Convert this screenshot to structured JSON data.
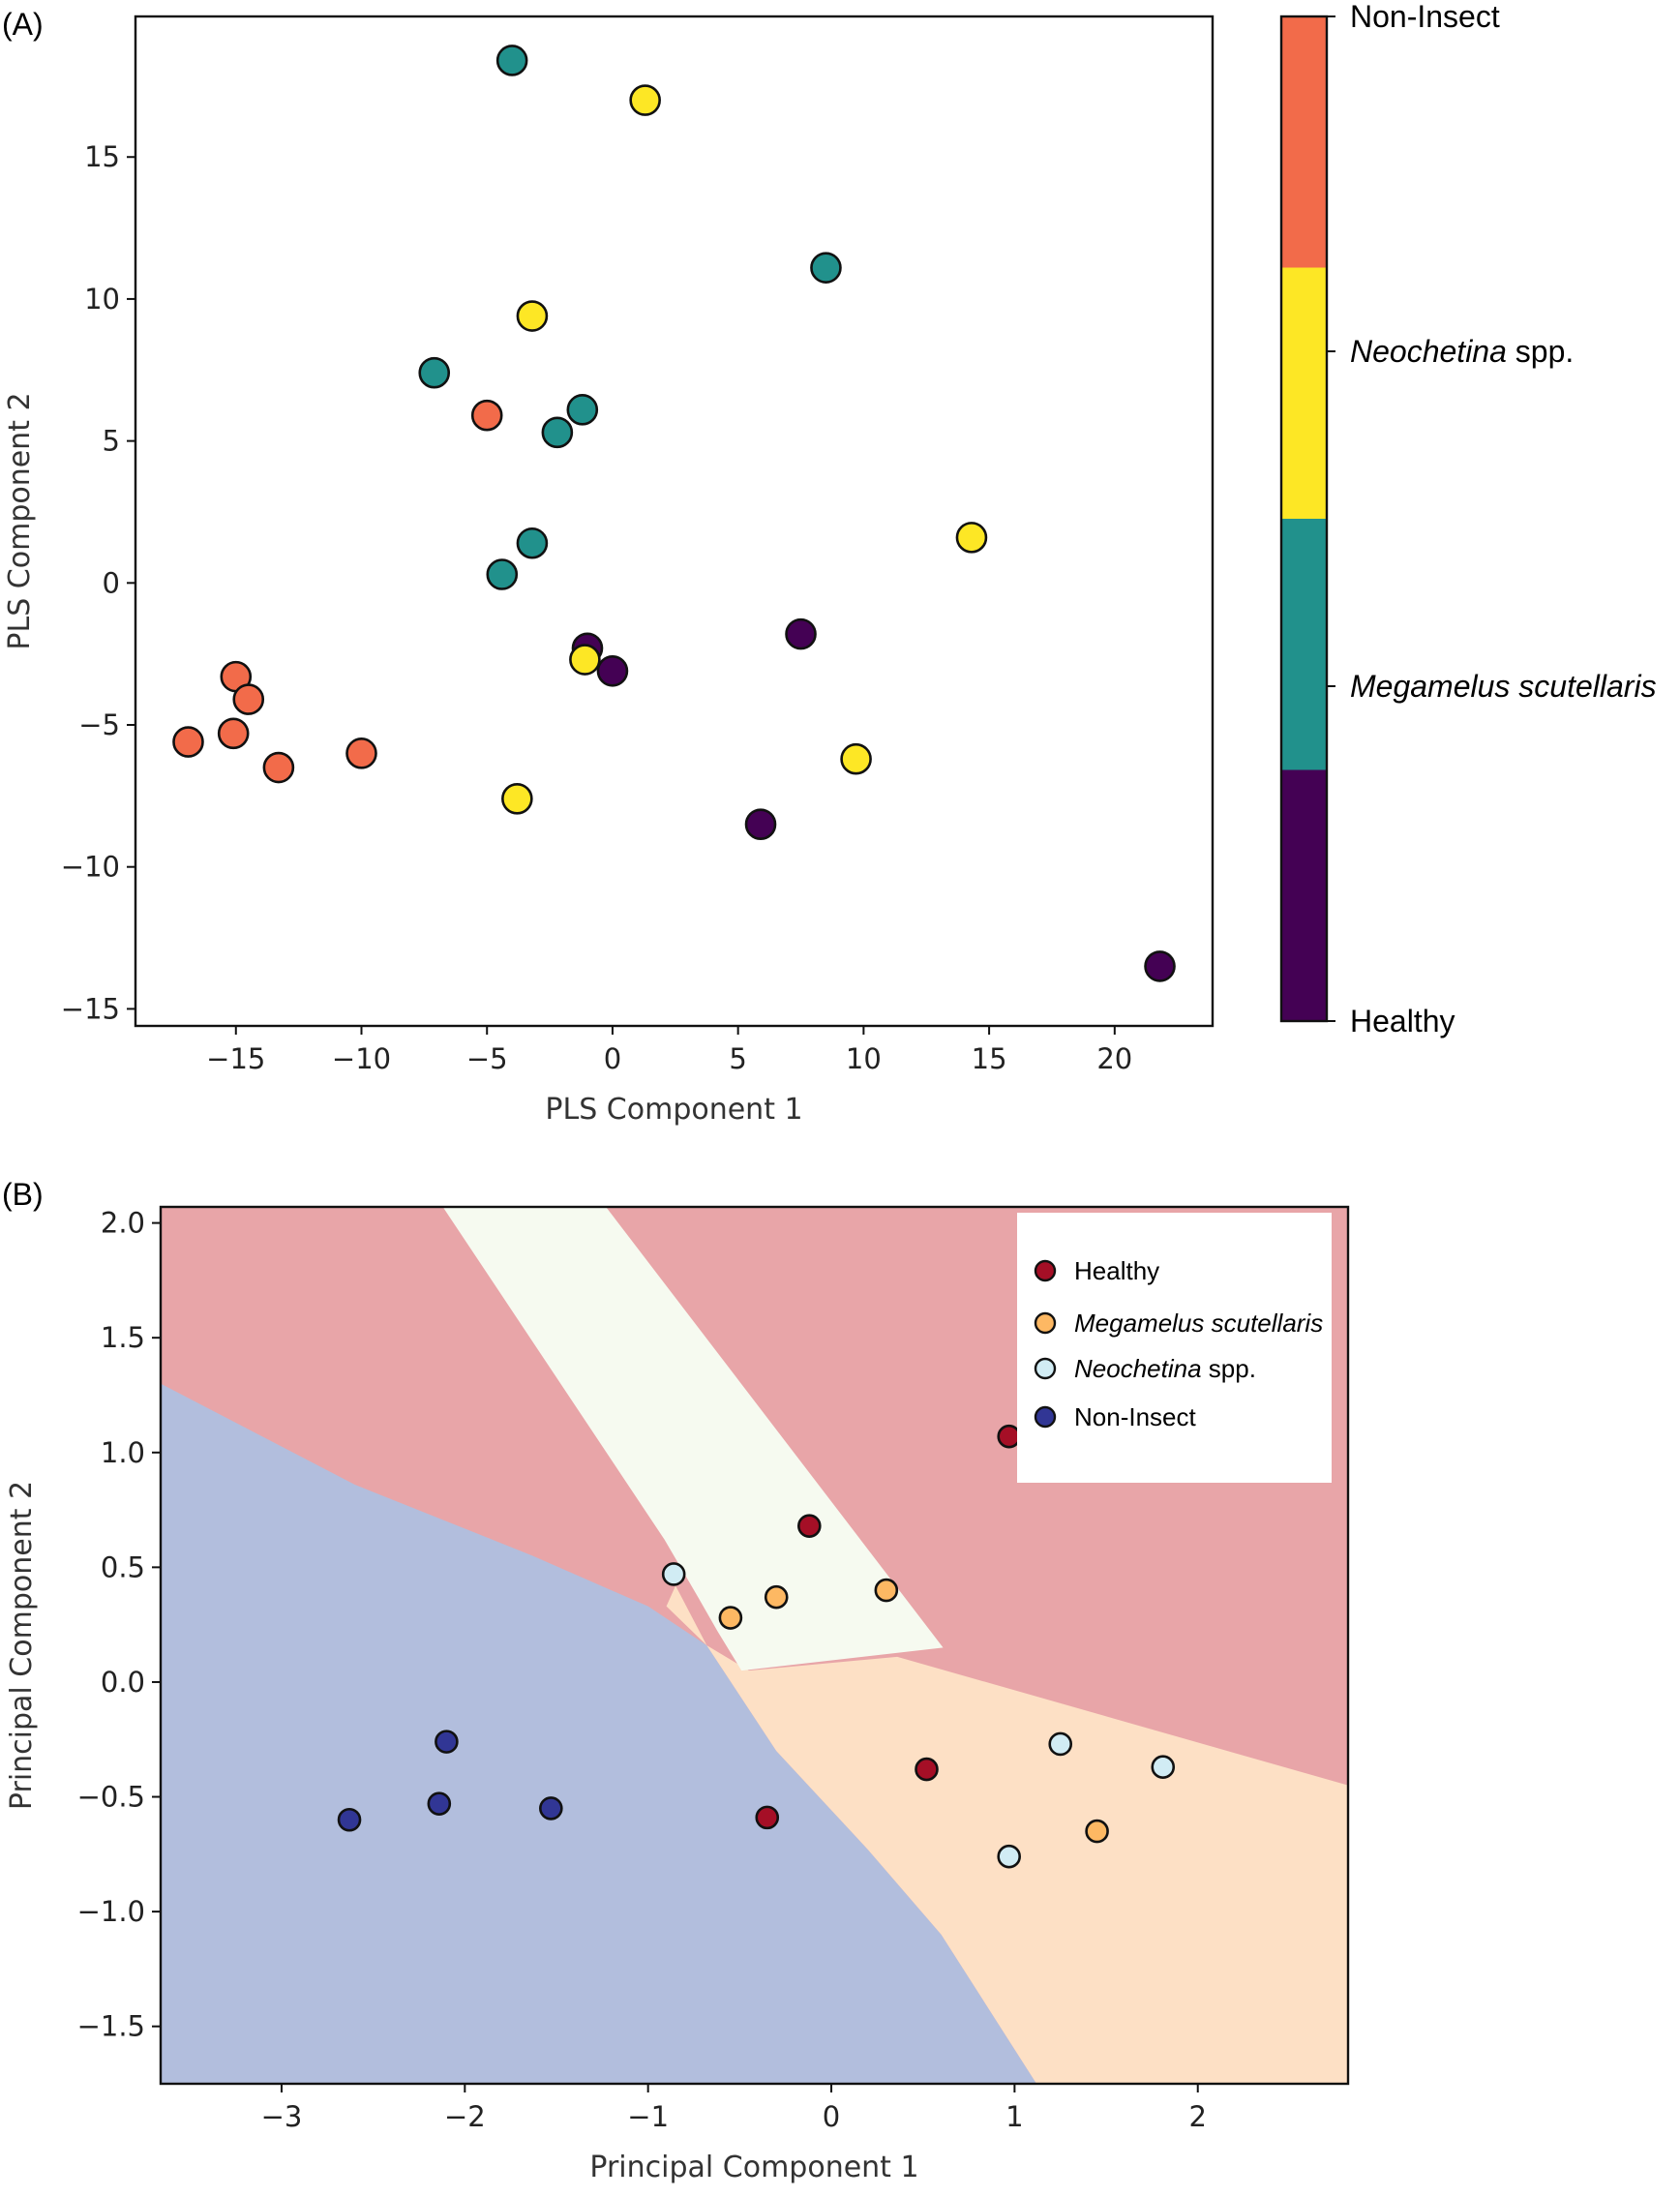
{
  "chart_data": [
    {
      "panel_label": "(A)",
      "type": "scatter",
      "xlabel": "PLS Component 1",
      "ylabel": "PLS Component 2",
      "xlim": [
        -19,
        23.9
      ],
      "ylim": [
        -15.6,
        19.95
      ],
      "xticks": [
        -15,
        -10,
        -5,
        0,
        5,
        10,
        15,
        20
      ],
      "yticks": [
        -15,
        -10,
        -5,
        0,
        5,
        10,
        15
      ],
      "grid": false,
      "colorbar": {
        "position": "right",
        "labels": [
          {
            "text": "Non-Insect",
            "italic": "",
            "rest": "Non-Insect"
          },
          {
            "text": "Neochetina spp.",
            "italic": "Neochetina",
            "rest": " spp."
          },
          {
            "text": "Megamelus scutellaris",
            "italic": "Megamelus scutellaris",
            "rest": ""
          },
          {
            "text": "Healthy",
            "italic": "",
            "rest": "Healthy"
          }
        ],
        "colors": [
          "#f26b4a",
          "#fde725",
          "#21918c",
          "#440154"
        ]
      },
      "series": [
        {
          "name": "Healthy",
          "color": "#440154",
          "points": [
            [
              -1,
              -2.3
            ],
            [
              0,
              -3.1
            ],
            [
              7.5,
              -1.8
            ],
            [
              5.9,
              -8.5
            ],
            [
              21.8,
              -13.5
            ]
          ]
        },
        {
          "name": "Megamelus scutellaris",
          "color": "#21918c",
          "points": [
            [
              -4,
              18.4
            ],
            [
              8.5,
              11.1
            ],
            [
              -7.1,
              7.4
            ],
            [
              -1.2,
              6.1
            ],
            [
              -2.2,
              5.3
            ],
            [
              -3.2,
              1.4
            ],
            [
              -4.4,
              0.3
            ]
          ]
        },
        {
          "name": "Neochetina spp.",
          "color": "#fde725",
          "points": [
            [
              1.3,
              17.0
            ],
            [
              -3.2,
              9.4
            ],
            [
              14.3,
              1.6
            ],
            [
              -1.1,
              -2.7
            ],
            [
              9.7,
              -6.2
            ],
            [
              -3.8,
              -7.6
            ]
          ]
        },
        {
          "name": "Non-Insect",
          "color": "#f26b4a",
          "points": [
            [
              -5,
              5.9
            ],
            [
              -15,
              -3.3
            ],
            [
              -14.5,
              -4.1
            ],
            [
              -16.9,
              -5.6
            ],
            [
              -15.1,
              -5.3
            ],
            [
              -13.3,
              -6.5
            ],
            [
              -10,
              -6.0
            ]
          ]
        }
      ]
    },
    {
      "panel_label": "(B)",
      "type": "scatter",
      "xlabel": "Principal Component 1",
      "ylabel": "Principal Component 2",
      "xlim": [
        -3.66,
        2.82
      ],
      "ylim": [
        -1.75,
        2.07
      ],
      "xticks": [
        -3,
        -2,
        -1,
        0,
        1,
        2
      ],
      "yticks": [
        -1.5,
        -1.0,
        -0.5,
        0.0,
        0.5,
        1.0,
        1.5,
        2.0
      ],
      "ytick_labels": [
        "−1.5",
        "−1.0",
        "−0.5",
        "0.0",
        "0.5",
        "1.0",
        "1.5",
        "2.0"
      ],
      "grid": false,
      "legend": "top-right",
      "decision_regions": {
        "background": "#e8a5a8",
        "regions": [
          {
            "class": "Non-Insect",
            "color": "#b2bedd",
            "polygon": [
              [
                -3.66,
                1.3
              ],
              [
                -2.6,
                0.86
              ],
              [
                -1.63,
                0.55
              ],
              [
                -1.0,
                0.33
              ],
              [
                -0.68,
                0.16
              ],
              [
                -0.3,
                -0.3
              ],
              [
                0.2,
                -0.73
              ],
              [
                0.6,
                -1.1
              ],
              [
                1.12,
                -1.75
              ],
              [
                -3.66,
                -1.75
              ]
            ]
          },
          {
            "class": "Megamelus scutellaris",
            "color": "#fde0c5",
            "polygon": [
              [
                -0.85,
                0.42
              ],
              [
                -0.68,
                0.16
              ],
              [
                -0.45,
                0.05
              ],
              [
                0.36,
                0.11
              ],
              [
                2.82,
                -0.45
              ],
              [
                2.82,
                -1.75
              ],
              [
                1.12,
                -1.75
              ],
              [
                0.6,
                -1.1
              ],
              [
                0.2,
                -0.73
              ],
              [
                -0.3,
                -0.3
              ],
              [
                -0.68,
                0.16
              ],
              [
                -0.9,
                0.33
              ]
            ]
          },
          {
            "class": "Neochetina spp.",
            "color": "#f6faf0",
            "polygon": [
              [
                -2.12,
                2.07
              ],
              [
                -1.23,
                2.07
              ],
              [
                0.61,
                0.15
              ],
              [
                -0.49,
                0.05
              ],
              [
                -0.62,
                0.22
              ],
              [
                -0.72,
                0.36
              ],
              [
                -0.91,
                0.62
              ]
            ]
          }
        ]
      },
      "series": [
        {
          "name": "Healthy",
          "italic": "",
          "rest": "Healthy",
          "color": "#a50f26",
          "points": [
            [
              0.97,
              1.07
            ],
            [
              -0.12,
              0.68
            ],
            [
              0.52,
              -0.38
            ],
            [
              -0.35,
              -0.59
            ]
          ]
        },
        {
          "name": "Megamelus scutellaris",
          "italic": "Megamelus scutellaris",
          "rest": "",
          "color": "#fdb863",
          "points": [
            [
              -0.3,
              0.37
            ],
            [
              -0.55,
              0.28
            ],
            [
              0.3,
              0.4
            ],
            [
              1.45,
              -0.65
            ]
          ]
        },
        {
          "name": "Neochetina spp.",
          "italic": "Neochetina",
          "rest": " spp.",
          "color": "#d1ecf4",
          "points": [
            [
              -0.86,
              0.47
            ],
            [
              1.25,
              -0.27
            ],
            [
              1.81,
              -0.37
            ],
            [
              0.97,
              -0.76
            ]
          ]
        },
        {
          "name": "Non-Insect",
          "italic": "",
          "rest": "Non-Insect",
          "color": "#313695",
          "points": [
            [
              -2.1,
              -0.26
            ],
            [
              -2.14,
              -0.53
            ],
            [
              -1.53,
              -0.55
            ],
            [
              -2.63,
              -0.6
            ]
          ]
        }
      ]
    }
  ]
}
